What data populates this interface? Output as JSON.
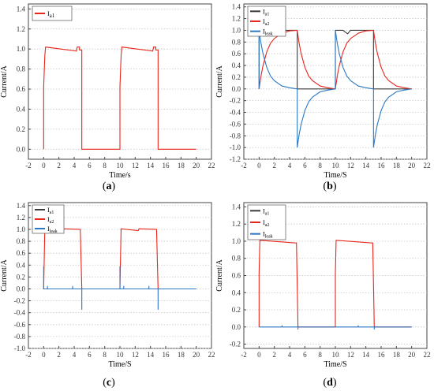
{
  "figure": {
    "captions": [
      "(a)",
      "(b)",
      "(c)",
      "(d)"
    ]
  },
  "chart_data": [
    {
      "panel": "a",
      "type": "line",
      "xlabel": "Time/s",
      "ylabel": "Current/A",
      "xlim": [
        -2,
        22
      ],
      "ylim": [
        -0.1,
        1.45
      ],
      "xticks": [
        "-2",
        "0",
        "2",
        "4",
        "6",
        "8",
        "10",
        "12",
        "14",
        "16",
        "18",
        "20",
        "22"
      ],
      "yticks": [
        "0.0",
        "0.2",
        "0.4",
        "0.6",
        "0.8",
        "1.0",
        "1.2",
        "1.4"
      ],
      "grid": "horizontal dotted",
      "legend_position": "top-left",
      "series": [
        {
          "name": "Ia1",
          "color": "#e8261c",
          "points": [
            [
              0,
              0
            ],
            [
              0,
              0.62
            ],
            [
              0.15,
              0.93
            ],
            [
              0.25,
              1.02
            ],
            [
              4.3,
              0.98
            ],
            [
              4.4,
              1.02
            ],
            [
              4.7,
              1.02
            ],
            [
              4.7,
              0.99
            ],
            [
              5,
              0.99
            ],
            [
              5,
              0
            ],
            [
              10,
              0
            ],
            [
              10,
              0.62
            ],
            [
              10.15,
              0.93
            ],
            [
              10.25,
              1.02
            ],
            [
              14.3,
              0.98
            ],
            [
              14.4,
              1.02
            ],
            [
              14.7,
              1.02
            ],
            [
              14.7,
              0.99
            ],
            [
              15,
              0.99
            ],
            [
              15,
              0
            ],
            [
              20,
              0
            ]
          ]
        }
      ]
    },
    {
      "panel": "b",
      "type": "line",
      "xlabel": "Time/S",
      "ylabel": "Current/A",
      "xlim": [
        -2,
        22
      ],
      "ylim": [
        -1.2,
        1.45
      ],
      "xticks": [
        "-2",
        "0",
        "2",
        "4",
        "6",
        "8",
        "10",
        "12",
        "14",
        "16",
        "18",
        "20",
        "22"
      ],
      "yticks": [
        "-1.2",
        "-1.0",
        "-0.8",
        "-0.6",
        "-0.4",
        "-0.2",
        "0.0",
        "0.2",
        "0.4",
        "0.6",
        "0.8",
        "1.0",
        "1.2",
        "1.4"
      ],
      "grid": "horizontal dotted",
      "legend_position": "top-left",
      "series": [
        {
          "name": "Ia1",
          "color": "#3a3a3a",
          "points": [
            [
              0,
              0
            ],
            [
              0,
              1.0
            ],
            [
              1,
              1.0
            ],
            [
              1.6,
              0.94
            ],
            [
              2,
              1.0
            ],
            [
              4.7,
              1.0
            ],
            [
              5,
              1.0
            ],
            [
              5,
              0
            ],
            [
              10,
              0
            ],
            [
              10,
              1.0
            ],
            [
              11,
              1.0
            ],
            [
              11.6,
              0.94
            ],
            [
              12,
              1.0
            ],
            [
              14.7,
              1.0
            ],
            [
              15,
              1.0
            ],
            [
              15,
              0
            ],
            [
              20,
              0
            ]
          ]
        },
        {
          "name": "Ia2",
          "color": "#e8261c",
          "points": [
            [
              0,
              0
            ],
            [
              0.25,
              0.22
            ],
            [
              0.5,
              0.39
            ],
            [
              1,
              0.63
            ],
            [
              1.5,
              0.78
            ],
            [
              2,
              0.86
            ],
            [
              3,
              0.95
            ],
            [
              4,
              0.99
            ],
            [
              5,
              1.0
            ],
            [
              5.25,
              0.78
            ],
            [
              5.5,
              0.61
            ],
            [
              6,
              0.37
            ],
            [
              6.5,
              0.22
            ],
            [
              7,
              0.14
            ],
            [
              8,
              0.05
            ],
            [
              9,
              0.02
            ],
            [
              10,
              0
            ],
            [
              10.25,
              0.22
            ],
            [
              10.5,
              0.39
            ],
            [
              11,
              0.63
            ],
            [
              11.5,
              0.78
            ],
            [
              12,
              0.86
            ],
            [
              13,
              0.95
            ],
            [
              14,
              0.99
            ],
            [
              15,
              1.0
            ],
            [
              15.25,
              0.78
            ],
            [
              15.5,
              0.61
            ],
            [
              16,
              0.37
            ],
            [
              16.5,
              0.22
            ],
            [
              17,
              0.14
            ],
            [
              18,
              0.05
            ],
            [
              19,
              0.02
            ],
            [
              20,
              0
            ]
          ]
        },
        {
          "name": "Ileak",
          "color": "#2a78c6",
          "points": [
            [
              0,
              0
            ],
            [
              0,
              1.0
            ],
            [
              0.25,
              0.78
            ],
            [
              0.5,
              0.61
            ],
            [
              1,
              0.37
            ],
            [
              1.5,
              0.22
            ],
            [
              2,
              0.14
            ],
            [
              3,
              0.05
            ],
            [
              4,
              0.02
            ],
            [
              5,
              0
            ],
            [
              5,
              -1.0
            ],
            [
              5.25,
              -0.78
            ],
            [
              5.5,
              -0.61
            ],
            [
              6,
              -0.37
            ],
            [
              6.5,
              -0.22
            ],
            [
              7,
              -0.14
            ],
            [
              8,
              -0.05
            ],
            [
              9,
              -0.02
            ],
            [
              10,
              0
            ],
            [
              10,
              1.0
            ],
            [
              10.25,
              0.78
            ],
            [
              10.5,
              0.61
            ],
            [
              11,
              0.37
            ],
            [
              11.5,
              0.22
            ],
            [
              12,
              0.14
            ],
            [
              13,
              0.05
            ],
            [
              14,
              0.02
            ],
            [
              15,
              0
            ],
            [
              15,
              -1.0
            ],
            [
              15.25,
              -0.78
            ],
            [
              15.5,
              -0.61
            ],
            [
              16,
              -0.37
            ],
            [
              16.5,
              -0.22
            ],
            [
              17,
              -0.14
            ],
            [
              18,
              -0.05
            ],
            [
              19,
              -0.02
            ],
            [
              20,
              0
            ]
          ]
        }
      ]
    },
    {
      "panel": "c",
      "type": "line",
      "xlabel": "Time/S",
      "ylabel": "Current/A",
      "xlim": [
        -2,
        22
      ],
      "ylim": [
        -1.0,
        1.45
      ],
      "xticks": [
        "-2",
        "0",
        "2",
        "4",
        "6",
        "8",
        "10",
        "12",
        "14",
        "16",
        "18",
        "20",
        "22"
      ],
      "yticks": [
        "-1.0",
        "-0.8",
        "-0.6",
        "-0.4",
        "-0.2",
        "0.0",
        "0.2",
        "0.4",
        "0.6",
        "0.8",
        "1.0",
        "1.2",
        "1.4"
      ],
      "grid": "horizontal dotted",
      "legend_position": "top-left",
      "series": [
        {
          "name": "Ia1",
          "color": "#3a3a3a",
          "points": []
        },
        {
          "name": "Ia2",
          "color": "#e8261c",
          "points": [
            [
              0,
              0
            ],
            [
              0.15,
              1.01
            ],
            [
              2.4,
              0.98
            ],
            [
              2.5,
              1.01
            ],
            [
              4.7,
              1.0
            ],
            [
              4.8,
              1.0
            ],
            [
              5,
              0
            ],
            [
              10,
              0
            ],
            [
              10.15,
              1.01
            ],
            [
              12.4,
              0.98
            ],
            [
              12.5,
              1.01
            ],
            [
              14.7,
              1.0
            ],
            [
              14.8,
              1.0
            ],
            [
              15,
              0
            ],
            [
              20,
              0
            ]
          ]
        },
        {
          "name": "Ileak",
          "color": "#2a78c6",
          "points": [
            [
              0,
              0
            ],
            [
              0,
              0.38
            ],
            [
              0,
              0
            ],
            [
              0.5,
              0
            ],
            [
              0.5,
              0.05
            ],
            [
              0.5,
              0
            ],
            [
              3.8,
              0
            ],
            [
              3.8,
              0.05
            ],
            [
              3.8,
              0
            ],
            [
              5,
              0
            ],
            [
              5,
              -0.35
            ],
            [
              5,
              0
            ],
            [
              10,
              0
            ],
            [
              10,
              0.38
            ],
            [
              10,
              0
            ],
            [
              10.5,
              0
            ],
            [
              10.5,
              0.05
            ],
            [
              10.5,
              0
            ],
            [
              13.8,
              0
            ],
            [
              13.8,
              0.05
            ],
            [
              13.8,
              0
            ],
            [
              15,
              0
            ],
            [
              15,
              -0.35
            ],
            [
              15,
              0
            ],
            [
              20,
              0
            ]
          ]
        }
      ]
    },
    {
      "panel": "d",
      "type": "line",
      "xlabel": "Time/S",
      "ylabel": "Current/A",
      "xlim": [
        -2,
        22
      ],
      "ylim": [
        -0.25,
        1.45
      ],
      "xticks": [
        "-2",
        "0",
        "2",
        "4",
        "6",
        "8",
        "10",
        "12",
        "14",
        "16",
        "18",
        "20",
        "22"
      ],
      "yticks": [
        "-0.2",
        "0.0",
        "0.2",
        "0.4",
        "0.6",
        "0.8",
        "1.0",
        "1.2",
        "1.4"
      ],
      "grid": "horizontal dotted",
      "legend_position": "top-left",
      "series": [
        {
          "name": "Ia1",
          "color": "#3a3a3a",
          "points": []
        },
        {
          "name": "Ia2",
          "color": "#e8261c",
          "points": [
            [
              0,
              0
            ],
            [
              0,
              0.62
            ],
            [
              0.1,
              1.01
            ],
            [
              4.8,
              0.98
            ],
            [
              4.9,
              0.98
            ],
            [
              5.1,
              0
            ],
            [
              10,
              0
            ],
            [
              10,
              0.62
            ],
            [
              10.1,
              1.01
            ],
            [
              14.8,
              0.98
            ],
            [
              14.9,
              0.98
            ],
            [
              15.1,
              0
            ],
            [
              20,
              0
            ]
          ]
        },
        {
          "name": "Ileak",
          "color": "#2a78c6",
          "points": [
            [
              0,
              0
            ],
            [
              3,
              0
            ],
            [
              3,
              0.02
            ],
            [
              3,
              0
            ],
            [
              5.1,
              0
            ],
            [
              5.1,
              -0.03
            ],
            [
              5.1,
              0
            ],
            [
              13,
              0
            ],
            [
              13,
              0.02
            ],
            [
              13,
              0
            ],
            [
              15.1,
              0
            ],
            [
              15.1,
              -0.03
            ],
            [
              15.1,
              0
            ],
            [
              20,
              0
            ]
          ]
        }
      ]
    }
  ]
}
